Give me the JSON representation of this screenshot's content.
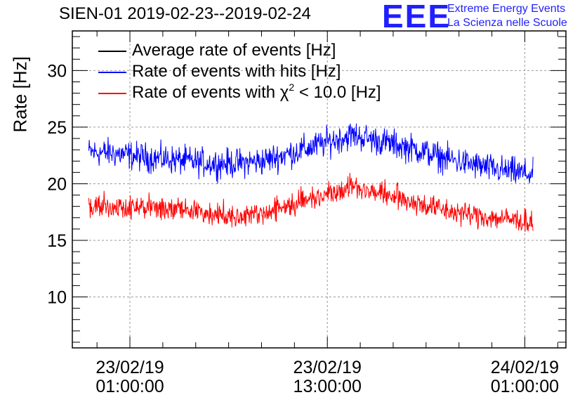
{
  "header": {
    "title": "SIEN-01 2019-02-23--2019-02-24",
    "logo_letters": "EEE",
    "logo_line1": "Extreme Energy Events",
    "logo_line2": "La Scienza nelle Scuole"
  },
  "legend": {
    "items": [
      {
        "label": "Average rate of events [Hz]",
        "color": "#000000"
      },
      {
        "label": "Rate of events with hits [Hz]",
        "color": "#0000ff"
      },
      {
        "label_prefix": "Rate of events with ",
        "label_chi": "χ",
        "label_sup": "2",
        "label_suffix": " < 10.0 [Hz]",
        "color": "#ff0000"
      }
    ]
  },
  "chart_data": {
    "type": "line",
    "title": "SIEN-01 2019-02-23--2019-02-24",
    "ylabel": "Rate [Hz]",
    "xlabel": "",
    "ylim": [
      5.5,
      33.5
    ],
    "yticks": [
      10,
      15,
      20,
      25,
      30
    ],
    "xlim_hours": [
      -3.5,
      26.5
    ],
    "xticks": [
      {
        "hour": 0,
        "label_date": "23/02/19",
        "label_time": "01:00:00"
      },
      {
        "hour": 12,
        "label_date": "23/02/19",
        "label_time": "13:00:00"
      },
      {
        "hour": 24,
        "label_date": "24/02/19",
        "label_time": "01:00:00"
      }
    ],
    "grid": true,
    "series": [
      {
        "name": "Rate of events with hits [Hz]",
        "color": "#0000ff",
        "x_hours": [
          -2.5,
          -1,
          0.5,
          2,
          3.5,
          5,
          6.5,
          8,
          9.5,
          11,
          12.5,
          13.5,
          14.5,
          16,
          17.5,
          19,
          20.5,
          22,
          23.5,
          24.5
        ],
        "values": [
          22.8,
          22.7,
          22.4,
          22.2,
          22.0,
          21.8,
          21.8,
          22.0,
          22.6,
          23.2,
          23.9,
          24.3,
          24.0,
          23.5,
          23.0,
          22.3,
          21.8,
          21.3,
          21.0,
          20.8
        ],
        "noise": 0.9
      },
      {
        "name": "Rate of events with χ² < 10.0 [Hz]",
        "color": "#ff0000",
        "x_hours": [
          -2.5,
          -1,
          0.5,
          2,
          3.5,
          5,
          6.5,
          8,
          9.5,
          11,
          12.5,
          13.5,
          14.5,
          16,
          17.5,
          19,
          20.5,
          22,
          23.5,
          24.5
        ],
        "values": [
          18.0,
          18.0,
          17.9,
          17.8,
          17.7,
          17.3,
          17.2,
          17.4,
          18.0,
          18.7,
          19.4,
          19.8,
          19.4,
          18.9,
          18.3,
          17.7,
          17.3,
          17.0,
          16.8,
          16.6
        ],
        "noise": 0.75
      }
    ]
  }
}
